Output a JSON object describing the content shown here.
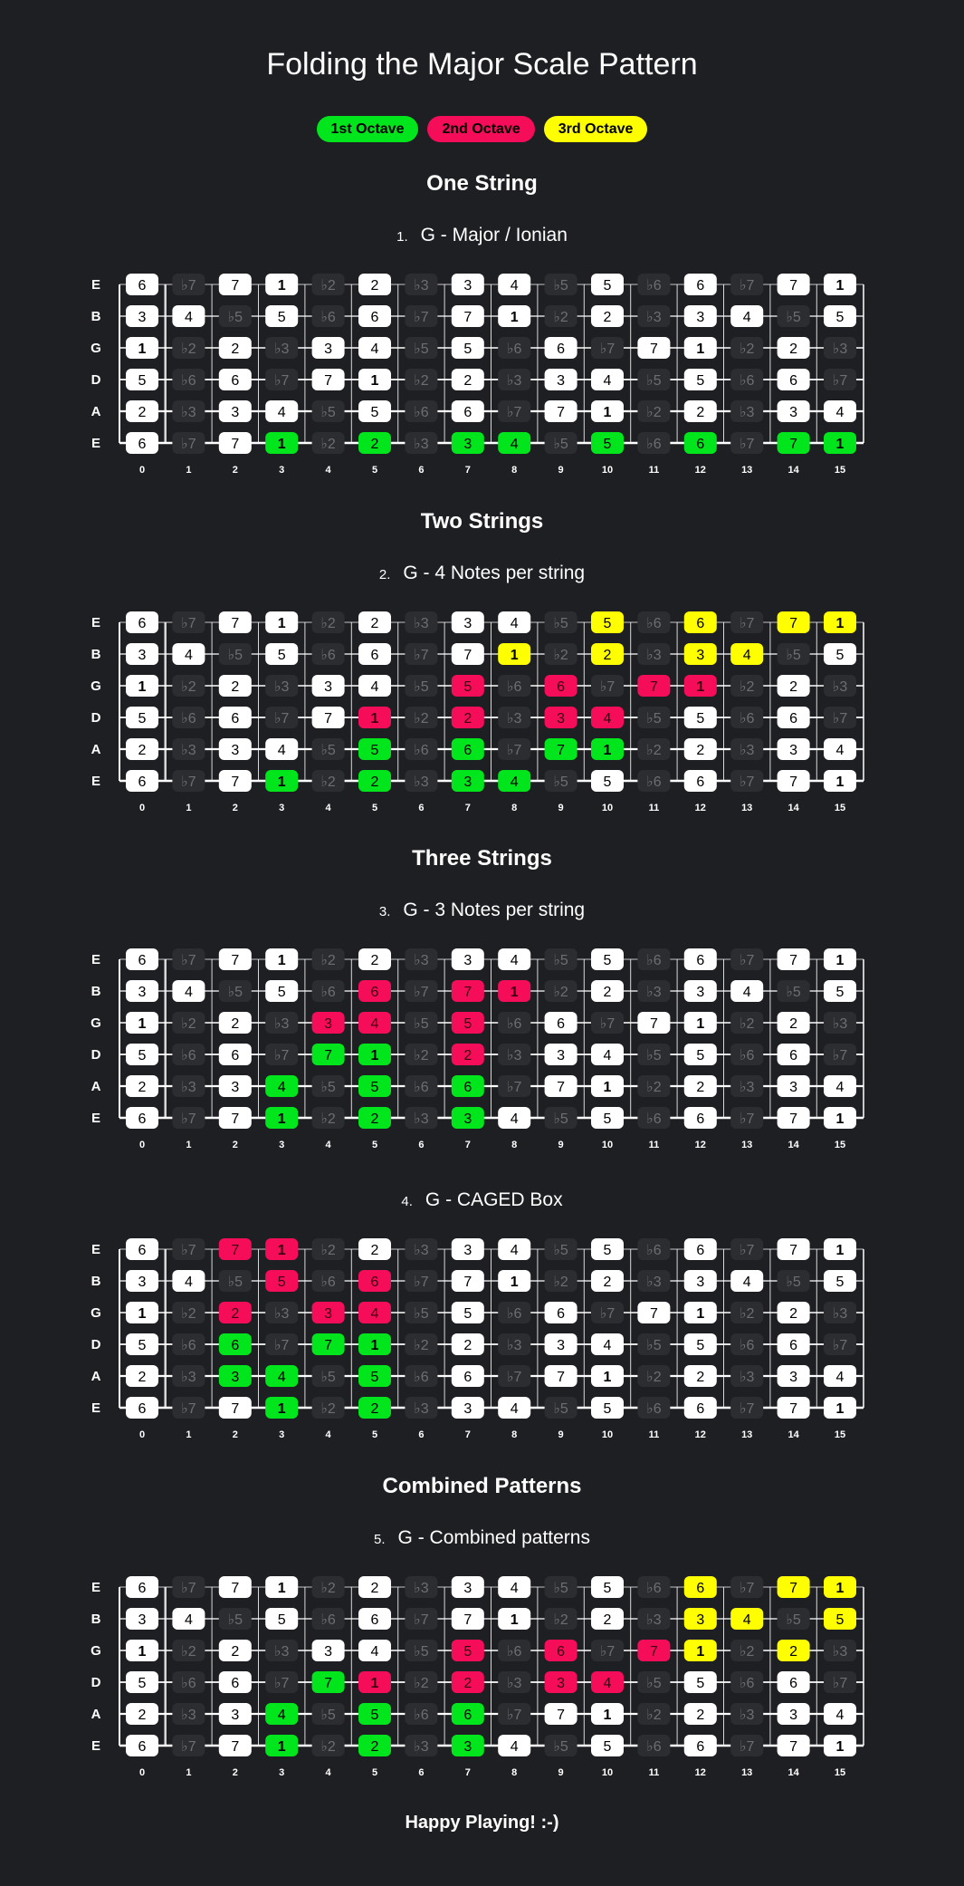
{
  "title": "Folding the Major Scale Pattern",
  "legend": [
    {
      "label": "1st Octave",
      "color": "#00e51b"
    },
    {
      "label": "2nd Octave",
      "color": "#f50d5a"
    },
    {
      "label": "3rd Octave",
      "color": "#ffff00"
    }
  ],
  "sections": {
    "one_string": "One String",
    "two_strings": "Two Strings",
    "three_strings": "Three Strings",
    "combined": "Combined Patterns"
  },
  "fret_numbers": [
    "0",
    "1",
    "2",
    "3",
    "4",
    "5",
    "6",
    "7",
    "8",
    "9",
    "10",
    "11",
    "12",
    "13",
    "14",
    "15"
  ],
  "string_names": [
    "E",
    "B",
    "G",
    "D",
    "A",
    "E"
  ],
  "notes": [
    [
      "6",
      "♭7",
      "7",
      "1",
      "♭2",
      "2",
      "♭3",
      "3",
      "4",
      "♭5",
      "5",
      "♭6",
      "6",
      "♭7",
      "7",
      "1"
    ],
    [
      "3",
      "4",
      "♭5",
      "5",
      "♭6",
      "6",
      "♭7",
      "7",
      "1",
      "♭2",
      "2",
      "♭3",
      "3",
      "4",
      "♭5",
      "5"
    ],
    [
      "1",
      "♭2",
      "2",
      "♭3",
      "3",
      "4",
      "♭5",
      "5",
      "♭6",
      "6",
      "♭7",
      "7",
      "1",
      "♭2",
      "2",
      "♭3"
    ],
    [
      "5",
      "♭6",
      "6",
      "♭7",
      "7",
      "1",
      "♭2",
      "2",
      "♭3",
      "3",
      "4",
      "♭5",
      "5",
      "♭6",
      "6",
      "♭7"
    ],
    [
      "2",
      "♭3",
      "3",
      "4",
      "♭5",
      "5",
      "♭6",
      "6",
      "♭7",
      "7",
      "1",
      "♭2",
      "2",
      "♭3",
      "3",
      "4"
    ],
    [
      "6",
      "♭7",
      "7",
      "1",
      "♭2",
      "2",
      "♭3",
      "3",
      "4",
      "♭5",
      "5",
      "♭6",
      "6",
      "♭7",
      "7",
      "1"
    ]
  ],
  "diagrams": [
    {
      "number": "1.",
      "title": "G - Major / Ionian",
      "highlights": [
        [
          5,
          3,
          "g"
        ],
        [
          5,
          5,
          "g"
        ],
        [
          5,
          7,
          "g"
        ],
        [
          5,
          8,
          "g"
        ],
        [
          5,
          10,
          "g"
        ],
        [
          5,
          12,
          "g"
        ],
        [
          5,
          14,
          "g"
        ],
        [
          5,
          15,
          "g"
        ]
      ]
    },
    {
      "number": "2.",
      "title": "G - 4 Notes per string",
      "highlights": [
        [
          5,
          3,
          "g"
        ],
        [
          5,
          5,
          "g"
        ],
        [
          5,
          7,
          "g"
        ],
        [
          5,
          8,
          "g"
        ],
        [
          4,
          5,
          "g"
        ],
        [
          4,
          7,
          "g"
        ],
        [
          4,
          9,
          "g"
        ],
        [
          4,
          10,
          "g"
        ],
        [
          3,
          5,
          "p"
        ],
        [
          3,
          7,
          "p"
        ],
        [
          3,
          9,
          "p"
        ],
        [
          3,
          10,
          "p"
        ],
        [
          2,
          7,
          "p"
        ],
        [
          2,
          9,
          "p"
        ],
        [
          2,
          11,
          "p"
        ],
        [
          2,
          12,
          "p"
        ],
        [
          1,
          8,
          "y"
        ],
        [
          1,
          10,
          "y"
        ],
        [
          1,
          12,
          "y"
        ],
        [
          1,
          13,
          "y"
        ],
        [
          0,
          10,
          "y"
        ],
        [
          0,
          12,
          "y"
        ],
        [
          0,
          14,
          "y"
        ],
        [
          0,
          15,
          "y"
        ]
      ]
    },
    {
      "number": "3.",
      "title": "G - 3 Notes per string",
      "highlights": [
        [
          5,
          3,
          "g"
        ],
        [
          5,
          5,
          "g"
        ],
        [
          5,
          7,
          "g"
        ],
        [
          4,
          3,
          "g"
        ],
        [
          4,
          5,
          "g"
        ],
        [
          4,
          7,
          "g"
        ],
        [
          3,
          4,
          "g"
        ],
        [
          3,
          5,
          "g"
        ],
        [
          3,
          7,
          "p"
        ],
        [
          2,
          4,
          "p"
        ],
        [
          2,
          5,
          "p"
        ],
        [
          2,
          7,
          "p"
        ],
        [
          1,
          5,
          "p"
        ],
        [
          1,
          7,
          "p"
        ],
        [
          1,
          8,
          "p"
        ]
      ]
    },
    {
      "number": "4.",
      "title": "G - CAGED Box",
      "highlights": [
        [
          5,
          3,
          "g"
        ],
        [
          5,
          5,
          "g"
        ],
        [
          4,
          2,
          "g"
        ],
        [
          4,
          3,
          "g"
        ],
        [
          4,
          5,
          "g"
        ],
        [
          3,
          2,
          "g"
        ],
        [
          3,
          4,
          "g"
        ],
        [
          3,
          5,
          "g"
        ],
        [
          2,
          2,
          "p"
        ],
        [
          2,
          4,
          "p"
        ],
        [
          2,
          5,
          "p"
        ],
        [
          1,
          3,
          "p"
        ],
        [
          1,
          5,
          "p"
        ],
        [
          0,
          2,
          "p"
        ],
        [
          0,
          3,
          "p"
        ]
      ]
    },
    {
      "number": "5.",
      "title": "G - Combined patterns",
      "highlights": [
        [
          5,
          3,
          "g"
        ],
        [
          5,
          5,
          "g"
        ],
        [
          5,
          7,
          "g"
        ],
        [
          4,
          3,
          "g"
        ],
        [
          4,
          5,
          "g"
        ],
        [
          4,
          7,
          "g"
        ],
        [
          3,
          4,
          "g"
        ],
        [
          3,
          5,
          "p"
        ],
        [
          3,
          7,
          "p"
        ],
        [
          3,
          9,
          "p"
        ],
        [
          3,
          10,
          "p"
        ],
        [
          2,
          7,
          "p"
        ],
        [
          2,
          9,
          "p"
        ],
        [
          2,
          11,
          "p"
        ],
        [
          2,
          12,
          "y"
        ],
        [
          2,
          14,
          "y"
        ],
        [
          1,
          12,
          "y"
        ],
        [
          1,
          13,
          "y"
        ],
        [
          1,
          15,
          "y"
        ],
        [
          0,
          12,
          "y"
        ],
        [
          0,
          14,
          "y"
        ],
        [
          0,
          15,
          "y"
        ]
      ]
    }
  ],
  "colors": {
    "g": "#00e51b",
    "p": "#f50d5a",
    "y": "#ffff00"
  },
  "footer": "Happy Playing! :-)"
}
